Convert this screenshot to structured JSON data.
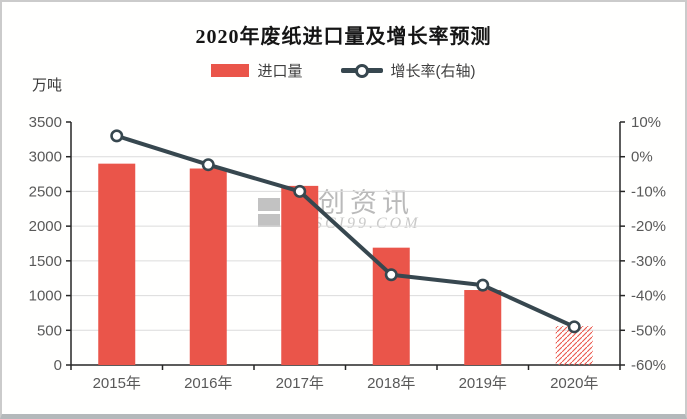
{
  "header": {
    "title": "2020年废纸进口量及增长率预测"
  },
  "legend": {
    "items": [
      {
        "label": "进口量",
        "marker": "bar-swatch"
      },
      {
        "label": "增长率(右轴)",
        "marker": "line-marker"
      }
    ]
  },
  "watermark": {
    "name": "卓创资讯",
    "site": "SCI99.COM"
  },
  "colors": {
    "bar": "#ea554a",
    "line": "#37474f",
    "grid": "#dcdcdc",
    "axis": "#262626",
    "tick_text": "#595959"
  },
  "chart_data": {
    "type": "bar+line combo",
    "title": "2020年废纸进口量及增长率预测",
    "categories": [
      "2015年",
      "2016年",
      "2017年",
      "2018年",
      "2019年",
      "2020年"
    ],
    "series": [
      {
        "name": "进口量",
        "type": "bar",
        "axis": "left",
        "unit": "万吨",
        "values": [
          2900,
          2830,
          2580,
          1690,
          1080,
          560
        ],
        "bar_styles": [
          "solid",
          "solid",
          "solid",
          "solid",
          "solid",
          "hatched-forecast"
        ]
      },
      {
        "name": "增长率(右轴)",
        "type": "line",
        "axis": "right",
        "unit": "%",
        "values": [
          6,
          -2.3,
          -10,
          -34,
          -37,
          -49
        ]
      }
    ],
    "left_axis": {
      "label": "万吨",
      "min": 0,
      "max": 3500,
      "step": 500,
      "tick_values": [
        3500,
        3000,
        2500,
        2000,
        1500,
        1000,
        500,
        0
      ],
      "tick_labels": [
        "3500",
        "3000",
        "2500",
        "2000",
        "1500",
        "1000",
        "500",
        "0"
      ]
    },
    "right_axis": {
      "min": -60,
      "max": 10,
      "step": 10,
      "tick_values": [
        10,
        0,
        -10,
        -20,
        -30,
        -40,
        -50,
        -60
      ],
      "tick_labels": [
        "10%",
        "0%",
        "-10%",
        "-20%",
        "-30%",
        "-40%",
        "-50%",
        "-60%"
      ]
    },
    "grid": "horizontal gridlines at each 500 / 10%",
    "legend_position": "top-center"
  }
}
